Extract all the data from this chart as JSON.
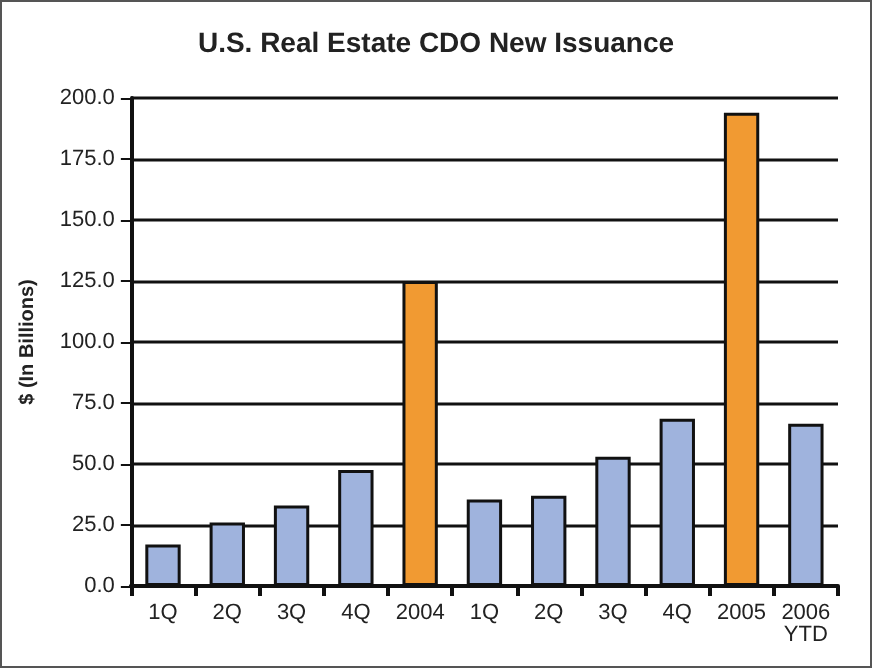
{
  "chart_data": {
    "type": "bar",
    "title": "U.S. Real Estate CDO New Issuance",
    "ylabel": "$ (In Billions)",
    "categories": [
      "1Q",
      "2Q",
      "3Q",
      "4Q",
      "2004",
      "1Q",
      "2Q",
      "3Q",
      "4Q",
      "2005",
      "2006\nYTD"
    ],
    "values": [
      17,
      26,
      33,
      47.5,
      125,
      35.5,
      37,
      53,
      68.5,
      194,
      66.5
    ],
    "colors": [
      "#9fb3dd",
      "#9fb3dd",
      "#9fb3dd",
      "#9fb3dd",
      "#f19a32",
      "#9fb3dd",
      "#9fb3dd",
      "#9fb3dd",
      "#9fb3dd",
      "#f19a32",
      "#9fb3dd"
    ],
    "ylim": [
      0,
      200
    ],
    "yticks": [
      {
        "value": 0,
        "label": "0.0"
      },
      {
        "value": 25,
        "label": "25.0"
      },
      {
        "value": 50,
        "label": "50.0"
      },
      {
        "value": 75,
        "label": "75.0"
      },
      {
        "value": 100,
        "label": "100.0"
      },
      {
        "value": 125,
        "label": "125.0"
      },
      {
        "value": 150,
        "label": "150.0"
      },
      {
        "value": 175,
        "label": "175.0"
      },
      {
        "value": 200,
        "label": "200.0"
      }
    ],
    "grid": "y"
  }
}
